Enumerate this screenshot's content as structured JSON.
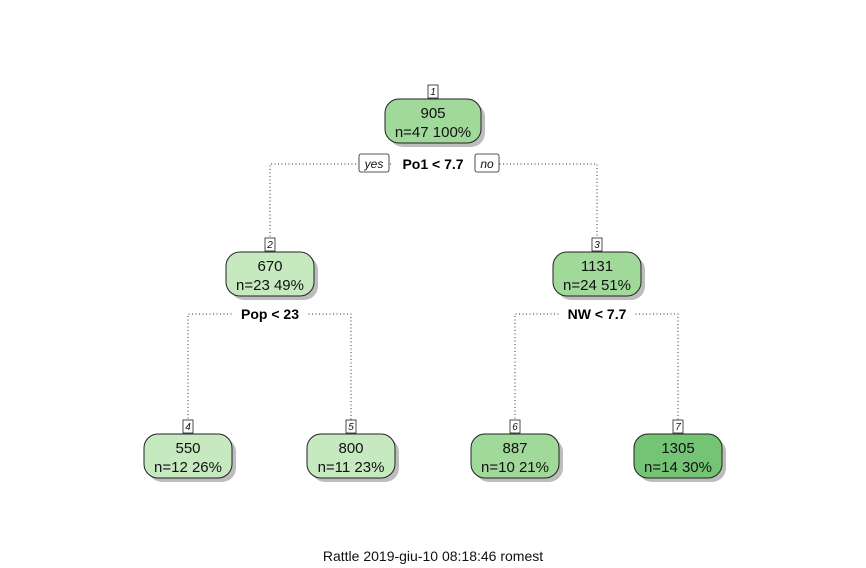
{
  "tree": {
    "nodes": [
      {
        "id": "1",
        "label": "1",
        "value": "905",
        "stats": "n=47  100%",
        "color": "#a1d99b"
      },
      {
        "id": "2",
        "label": "2",
        "value": "670",
        "stats": "n=23  49%",
        "color": "#c7e9c0"
      },
      {
        "id": "3",
        "label": "3",
        "value": "1131",
        "stats": "n=24  51%",
        "color": "#a1d99b"
      },
      {
        "id": "4",
        "label": "4",
        "value": "550",
        "stats": "n=12  26%",
        "color": "#c7e9c0"
      },
      {
        "id": "5",
        "label": "5",
        "value": "800",
        "stats": "n=11  23%",
        "color": "#c7e9c0"
      },
      {
        "id": "6",
        "label": "6",
        "value": "887",
        "stats": "n=10  21%",
        "color": "#a1d99b"
      },
      {
        "id": "7",
        "label": "7",
        "value": "1305",
        "stats": "n=14  30%",
        "color": "#74c476"
      }
    ],
    "splits": [
      {
        "node": "1",
        "rule": "Po1 < 7.7"
      },
      {
        "node": "2",
        "rule": "Pop < 23"
      },
      {
        "node": "3",
        "rule": "NW < 7.7"
      }
    ],
    "edges": [
      {
        "from": "1",
        "to": "2"
      },
      {
        "from": "1",
        "to": "3"
      },
      {
        "from": "2",
        "to": "4"
      },
      {
        "from": "2",
        "to": "5"
      },
      {
        "from": "3",
        "to": "6"
      },
      {
        "from": "3",
        "to": "7"
      }
    ],
    "branch_labels": {
      "yes": "yes",
      "no": "no"
    }
  },
  "caption": "Rattle 2019-giu-10 08:18:46 romest"
}
